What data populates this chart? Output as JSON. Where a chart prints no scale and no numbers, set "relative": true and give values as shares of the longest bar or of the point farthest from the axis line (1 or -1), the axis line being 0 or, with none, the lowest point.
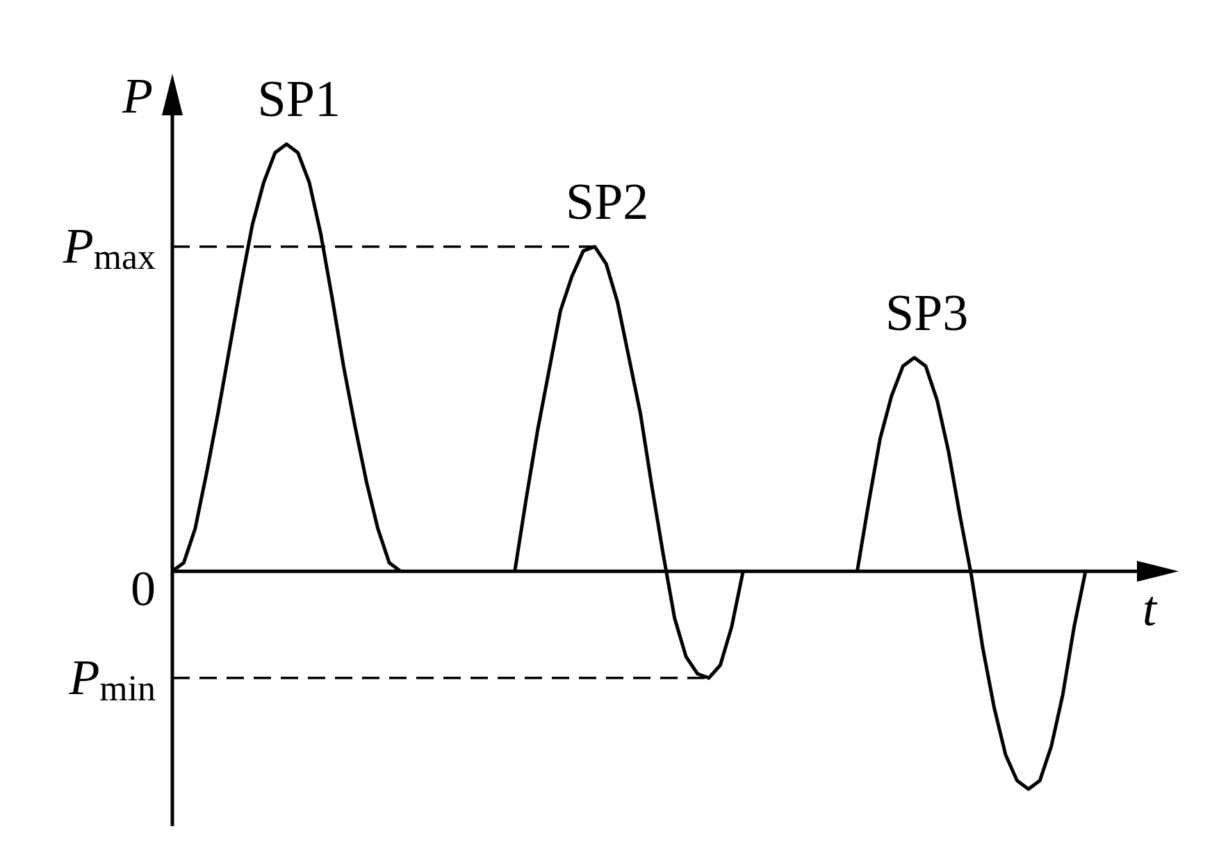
{
  "chart_data": {
    "type": "line",
    "relative": true,
    "xlabel": "t",
    "ylabel": "P",
    "categories": [
      null,
      null,
      null,
      null,
      null,
      null,
      null,
      null,
      null,
      null,
      null,
      null,
      null,
      null,
      null,
      null,
      null,
      null,
      null,
      null,
      null,
      null,
      null,
      null,
      null,
      null,
      null,
      null,
      null,
      null,
      null,
      null,
      null,
      null,
      null,
      null,
      null,
      null,
      null,
      null,
      null,
      null,
      null,
      null,
      null,
      null,
      null,
      null,
      null,
      null,
      null,
      null,
      null,
      null,
      null,
      null,
      null,
      null,
      null,
      null,
      null,
      null,
      null,
      null,
      null,
      null,
      null,
      null,
      null,
      null,
      null,
      null,
      null,
      null,
      null,
      null,
      null,
      null,
      null,
      null,
      null
    ],
    "series": [
      {
        "name": "SP1",
        "color": "#000000",
        "values": [
          0,
          0.02,
          0.1,
          0.23,
          0.37,
          0.52,
          0.67,
          0.81,
          0.91,
          0.98,
          1,
          0.98,
          0.91,
          0.79,
          0.64,
          0.48,
          0.34,
          0.21,
          0.1,
          0.02,
          0,
          null,
          null,
          null,
          null,
          null,
          null,
          null,
          null,
          null,
          null,
          null,
          null,
          null,
          null,
          null,
          null,
          null,
          null,
          null,
          null,
          null,
          null,
          null,
          null,
          null,
          null,
          null,
          null,
          null,
          null,
          null,
          null,
          null,
          null,
          null,
          null,
          null,
          null,
          null,
          null,
          null,
          null,
          null,
          null,
          null,
          null,
          null,
          null,
          null,
          null,
          null,
          null,
          null,
          null,
          null,
          null,
          null,
          null,
          null,
          null
        ]
      },
      {
        "name": "SP2",
        "color": "#000000",
        "values": [
          null,
          null,
          null,
          null,
          null,
          null,
          null,
          null,
          null,
          null,
          null,
          null,
          null,
          null,
          null,
          null,
          null,
          null,
          null,
          null,
          null,
          null,
          null,
          null,
          null,
          null,
          null,
          null,
          null,
          null,
          0,
          0.17,
          0.33,
          0.47,
          0.61,
          0.69,
          0.75,
          0.76,
          0.72,
          0.63,
          0.5,
          0.37,
          0.2,
          0.04,
          -0.11,
          -0.2,
          -0.24,
          -0.25,
          -0.22,
          -0.13,
          0,
          null,
          null,
          null,
          null,
          null,
          null,
          null,
          null,
          null,
          null,
          null,
          null,
          null,
          null,
          null,
          null,
          null,
          null,
          null,
          null,
          null,
          null,
          null,
          null,
          null,
          null,
          null,
          null,
          null,
          null
        ]
      },
      {
        "name": "SP3",
        "color": "#000000",
        "values": [
          null,
          null,
          null,
          null,
          null,
          null,
          null,
          null,
          null,
          null,
          null,
          null,
          null,
          null,
          null,
          null,
          null,
          null,
          null,
          null,
          null,
          null,
          null,
          null,
          null,
          null,
          null,
          null,
          null,
          null,
          null,
          null,
          null,
          null,
          null,
          null,
          null,
          null,
          null,
          null,
          null,
          null,
          null,
          null,
          null,
          null,
          null,
          null,
          null,
          null,
          null,
          null,
          null,
          null,
          null,
          null,
          null,
          null,
          null,
          null,
          0,
          0.16,
          0.31,
          0.41,
          0.48,
          0.5,
          0.48,
          0.4,
          0.28,
          0.13,
          -0.01,
          -0.18,
          -0.32,
          -0.43,
          -0.49,
          -0.51,
          -0.49,
          -0.41,
          -0.29,
          -0.13,
          0
        ]
      }
    ],
    "ref_lines": [
      {
        "axis": "y",
        "value": 0.76,
        "label": "P$_{max}$",
        "color": "#000000",
        "line_style": "dashed"
      },
      {
        "axis": "y",
        "value": -0.25,
        "label": "P$_{min}$",
        "color": "#000000",
        "line_style": "dashed"
      }
    ],
    "annotations": [
      "0"
    ]
  }
}
